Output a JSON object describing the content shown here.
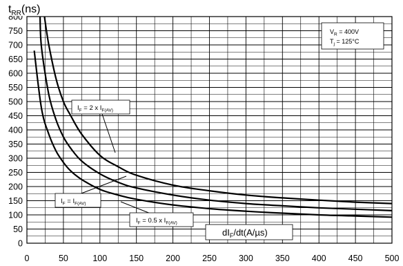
{
  "chart_data": {
    "type": "line",
    "title": "",
    "ylabel": {
      "base": "t",
      "sub": "RR",
      "rest": "(ns)"
    },
    "xlabel": {
      "a": "dI",
      "sub": "F",
      "b": "/dt(A/µs)"
    },
    "xlim": [
      0,
      500
    ],
    "ylim": [
      0,
      800
    ],
    "x_ticks": [
      "0",
      "50",
      "100",
      "150",
      "200",
      "250",
      "300",
      "350",
      "400",
      "450",
      "500"
    ],
    "y_ticks": [
      "0",
      "50",
      "100",
      "150",
      "200",
      "250",
      "300",
      "350",
      "400",
      "450",
      "500",
      "550",
      "600",
      "650",
      "700",
      "750",
      "800"
    ],
    "grid": true,
    "conditions": {
      "line1": {
        "base": "V",
        "sub": "R",
        "rest": " = 400V"
      },
      "line2": {
        "base": "T",
        "sub": "j",
        "rest": " = 125°C"
      }
    },
    "series": [
      {
        "label": {
          "p1": "I",
          "s1": "F",
          "p2": " = 2 x I",
          "s2": "F(AV)"
        },
        "x": [
          24,
          30,
          40,
          50,
          60,
          75,
          100,
          125,
          150,
          200,
          250,
          300,
          350,
          400,
          450,
          500
        ],
        "y": [
          800,
          700,
          580,
          500,
          450,
          385,
          310,
          270,
          240,
          205,
          185,
          170,
          160,
          152,
          145,
          140
        ]
      },
      {
        "label": {
          "p1": "I",
          "s1": "F",
          "p2": " = I",
          "s2": "F(AV)"
        },
        "x": [
          18,
          20,
          30,
          40,
          50,
          60,
          75,
          100,
          125,
          150,
          200,
          250,
          300,
          350,
          400,
          450,
          500
        ],
        "y": [
          800,
          690,
          525,
          435,
          375,
          335,
          290,
          245,
          215,
          195,
          170,
          152,
          140,
          132,
          125,
          120,
          115
        ]
      },
      {
        "label": {
          "p1": "I",
          "s1": "F",
          "p2": " = 0.5 x I",
          "s2": "F(AV)"
        },
        "x": [
          10,
          20,
          30,
          40,
          50,
          60,
          75,
          100,
          125,
          150,
          200,
          250,
          300,
          350,
          400,
          450,
          500
        ],
        "y": [
          680,
          475,
          385,
          325,
          285,
          255,
          225,
          190,
          170,
          155,
          135,
          122,
          113,
          106,
          100,
          96,
          92
        ]
      }
    ]
  }
}
